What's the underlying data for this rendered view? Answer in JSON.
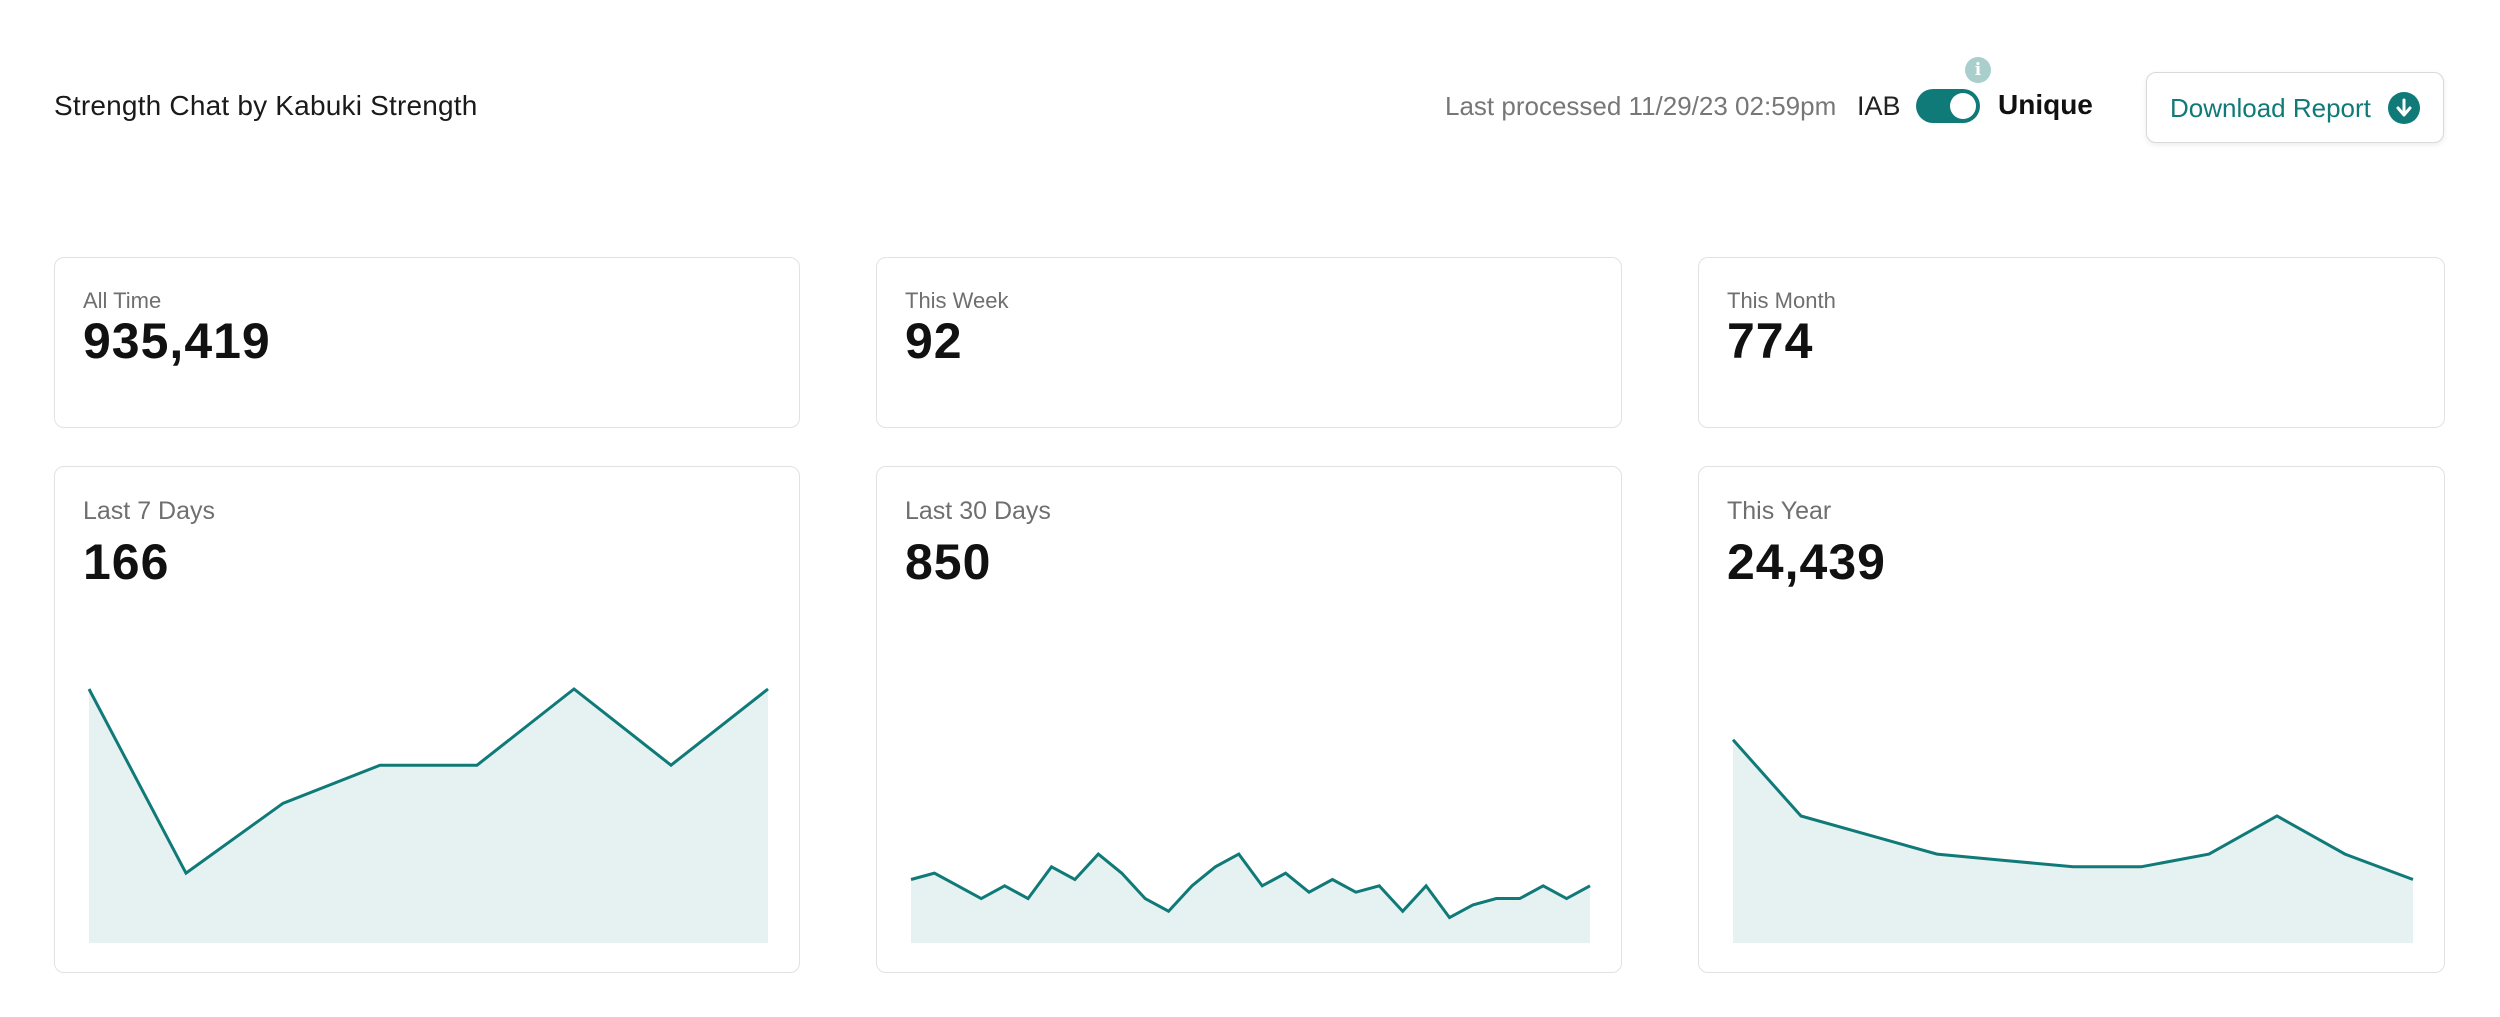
{
  "header": {
    "title": "Strength Chat by Kabuki Strength",
    "last_processed": "Last processed 11/29/23 02:59pm",
    "toggle_left_label": "IAB",
    "toggle_right_label": "Unique",
    "toggle_on": true,
    "info_icon": "info-icon",
    "download_label": "Download Report",
    "download_icon": "download-arrow-icon"
  },
  "colors": {
    "accent": "#107a78",
    "area_fill": "#e6f1f1",
    "card_border": "#e2e2e2",
    "info_icon": "#a9cfcd"
  },
  "stats": [
    {
      "label": "All Time",
      "value": "935,419"
    },
    {
      "label": "This Week",
      "value": "92"
    },
    {
      "label": "This Month",
      "value": "774"
    }
  ],
  "trend_cards": [
    {
      "label": "Last 7 Days",
      "value": "166"
    },
    {
      "label": "Last 30 Days",
      "value": "850"
    },
    {
      "label": "This Year",
      "value": "24,439"
    }
  ],
  "chart_data": [
    {
      "type": "area",
      "series": [
        {
          "values": [
            40,
            11,
            22,
            28,
            28,
            40,
            28,
            40
          ]
        }
      ]
    },
    {
      "type": "area",
      "series": [
        {
          "values": [
            10,
            11,
            9,
            7,
            9,
            7,
            12,
            10,
            14,
            11,
            7,
            5,
            9,
            12,
            14,
            9,
            11,
            8,
            10,
            8,
            9,
            5,
            9,
            4,
            6,
            7,
            7,
            9,
            7,
            9
          ]
        }
      ]
    },
    {
      "type": "area",
      "series": [
        {
          "values": [
            32,
            20,
            17,
            14,
            13,
            12,
            12,
            14,
            20,
            14,
            10
          ]
        }
      ]
    }
  ]
}
